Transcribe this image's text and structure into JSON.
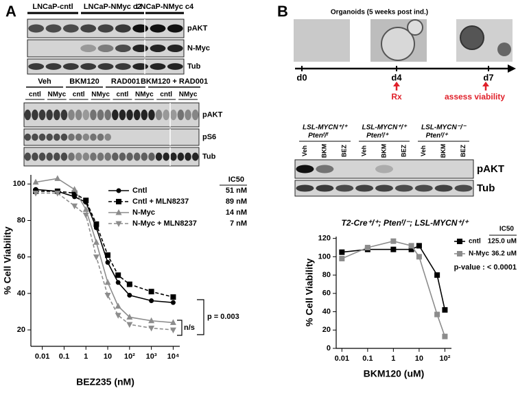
{
  "panel_labels": [
    "A",
    "B"
  ],
  "blot_a1": {
    "groups": [
      "LNCaP-cntl",
      "LNCaP-NMyc c2",
      "LNCaP-NMyc c4"
    ],
    "rows": [
      "pAKT",
      "N-Myc",
      "Tub"
    ]
  },
  "blot_a2": {
    "groups": [
      "Veh",
      "BKM120",
      "RAD001",
      "BKM120 + RAD001"
    ],
    "lanes": [
      "cntl",
      "NMyc",
      "cntl",
      "NMyc",
      "cntl",
      "NMyc",
      "cntl",
      "NMyc"
    ],
    "rows": [
      "pAKT",
      "pS6",
      "Tub"
    ]
  },
  "organoids": {
    "title": "Organoids (5 weeks post ind.)",
    "days": [
      "d0",
      "d4",
      "d7"
    ],
    "annotations": [
      "Rx",
      "assess viability"
    ]
  },
  "blot_b": {
    "genotypes": [
      [
        "LSL-MYCN⁺/⁺",
        "Ptenᶠ/ᶠ"
      ],
      [
        "LSL-MYCN⁺/⁺",
        "Ptenᶠ/⁺"
      ],
      [
        "LSL-MYCN⁻/⁻",
        "Ptenᶠ/⁺"
      ]
    ],
    "lanes": [
      "Veh",
      "BKM",
      "BEZ",
      "Veh",
      "BKM",
      "BEZ",
      "Veh",
      "BKM",
      "BEZ"
    ],
    "rows": [
      "pAKT",
      "Tub"
    ]
  },
  "chart_data": [
    {
      "type": "line",
      "xlabel": "BEZ235 (nM)",
      "ylabel": "% Cell Viability",
      "log_x": true,
      "x": [
        0.005,
        0.05,
        0.3,
        1,
        3,
        10,
        30,
        100,
        1000,
        10000
      ],
      "xlim": [
        0.003,
        20000
      ],
      "xticks": [
        0.01,
        0.1,
        1,
        10,
        {
          "value": 100,
          "label": "10²"
        },
        {
          "value": 1000,
          "label": "10³"
        },
        {
          "value": 10000,
          "label": "10⁴"
        }
      ],
      "ylim": [
        11,
        105
      ],
      "yticks": [
        20,
        40,
        60,
        80,
        100
      ],
      "ic50_header": "IC50",
      "series": [
        {
          "name": "Cntl",
          "color": "#000000",
          "line_style": "solid",
          "marker": "circle",
          "ic50": "51 nM",
          "values": [
            97,
            96,
            93,
            90,
            76,
            57,
            46,
            39,
            36,
            35
          ]
        },
        {
          "name": "Cntl + MLN8237",
          "color": "#000000",
          "line_style": "dashed",
          "marker": "square",
          "ic50": "89 nM",
          "values": [
            96,
            96,
            95,
            91,
            78,
            61,
            50,
            45,
            41,
            38
          ]
        },
        {
          "name": "N-Myc",
          "color": "#8c8c8c",
          "line_style": "solid",
          "marker": "triangle",
          "ic50": "14 nM",
          "values": [
            101,
            103,
            97,
            86,
            68,
            46,
            33,
            27,
            25,
            24
          ]
        },
        {
          "name": "N-Myc + MLN8237",
          "color": "#8c8c8c",
          "line_style": "dashed",
          "marker": "triangle-down",
          "ic50": "7 nM",
          "values": [
            95,
            95,
            88,
            83,
            60,
            39,
            28,
            23,
            21,
            20
          ]
        }
      ],
      "annotations": [
        "p = 0.003",
        "n/s"
      ]
    },
    {
      "type": "line",
      "title": "T2-Cre⁺/⁺; Ptenᶠ/⁻; LSL-MYCN⁺/⁺",
      "xlabel": "BKM120 (uM)",
      "ylabel": "% Cell Viability",
      "log_x": true,
      "x": [
        0.01,
        0.1,
        1,
        5,
        10,
        50,
        100
      ],
      "xlim": [
        0.006,
        180
      ],
      "xticks": [
        0.01,
        0.1,
        1,
        10,
        {
          "value": 100,
          "label": "10²"
        }
      ],
      "ylim": [
        0,
        122
      ],
      "yticks": [
        0,
        20,
        40,
        60,
        80,
        100,
        120
      ],
      "ic50_header": "IC50",
      "series": [
        {
          "name": "cntl",
          "color": "#000000",
          "line_style": "solid",
          "marker": "square",
          "ic50": "125.0 uM",
          "values": [
            105,
            108,
            108,
            108,
            112,
            80,
            42
          ]
        },
        {
          "name": "N-Myc",
          "color": "#8c8c8c",
          "line_style": "solid",
          "marker": "square",
          "ic50": "36.2 uM",
          "values": [
            98,
            110,
            117,
            112,
            100,
            37,
            13
          ]
        }
      ],
      "annotations": [
        "p-value : < 0.0001"
      ]
    }
  ]
}
